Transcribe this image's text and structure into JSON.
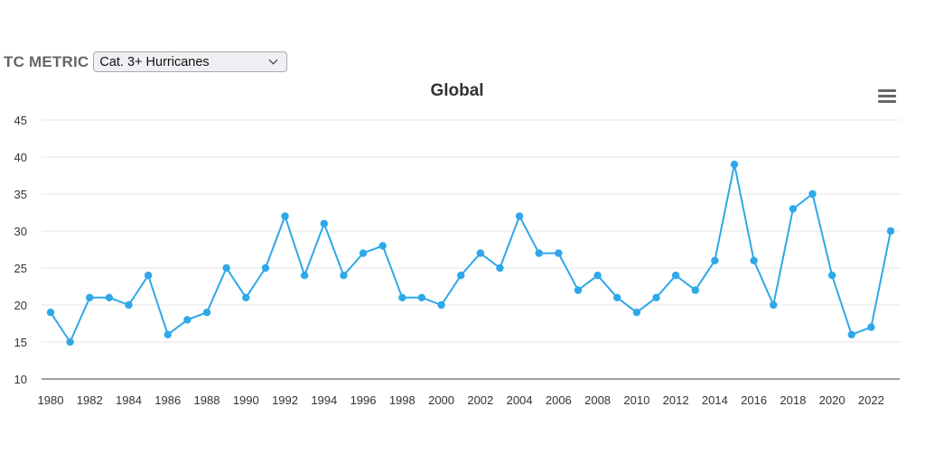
{
  "controls": {
    "metric_label": "TC METRIC",
    "metric_selected": "Cat. 3+ Hurricanes"
  },
  "header": {
    "title": "Global",
    "menu_icon": "hamburger-menu-icon"
  },
  "colors": {
    "series": "#2ea8e8",
    "grid": "#e6e6e6",
    "axis": "#666666"
  },
  "chart_data": {
    "type": "line",
    "title": "Global",
    "xlabel": "",
    "ylabel": "",
    "ylim": [
      10,
      45
    ],
    "yticks": [
      10,
      15,
      20,
      25,
      30,
      35,
      40,
      45
    ],
    "xticks": [
      1980,
      1982,
      1984,
      1986,
      1988,
      1990,
      1992,
      1994,
      1996,
      1998,
      2000,
      2002,
      2004,
      2006,
      2008,
      2010,
      2012,
      2014,
      2016,
      2018,
      2020,
      2022
    ],
    "grid": true,
    "legend": "none",
    "x": [
      1980,
      1981,
      1982,
      1983,
      1984,
      1985,
      1986,
      1987,
      1988,
      1989,
      1990,
      1991,
      1992,
      1993,
      1994,
      1995,
      1996,
      1997,
      1998,
      1999,
      2000,
      2001,
      2002,
      2003,
      2004,
      2005,
      2006,
      2007,
      2008,
      2009,
      2010,
      2011,
      2012,
      2013,
      2014,
      2015,
      2016,
      2017,
      2018,
      2019,
      2020,
      2021,
      2022,
      2023
    ],
    "series": [
      {
        "name": "Cat. 3+ Hurricanes",
        "values": [
          19,
          15,
          21,
          21,
          20,
          24,
          16,
          18,
          19,
          25,
          21,
          25,
          32,
          24,
          31,
          24,
          27,
          28,
          21,
          21,
          20,
          24,
          27,
          25,
          32,
          27,
          27,
          22,
          24,
          21,
          19,
          21,
          24,
          22,
          26,
          39,
          26,
          20,
          33,
          35,
          24,
          16,
          17,
          30
        ]
      }
    ]
  }
}
